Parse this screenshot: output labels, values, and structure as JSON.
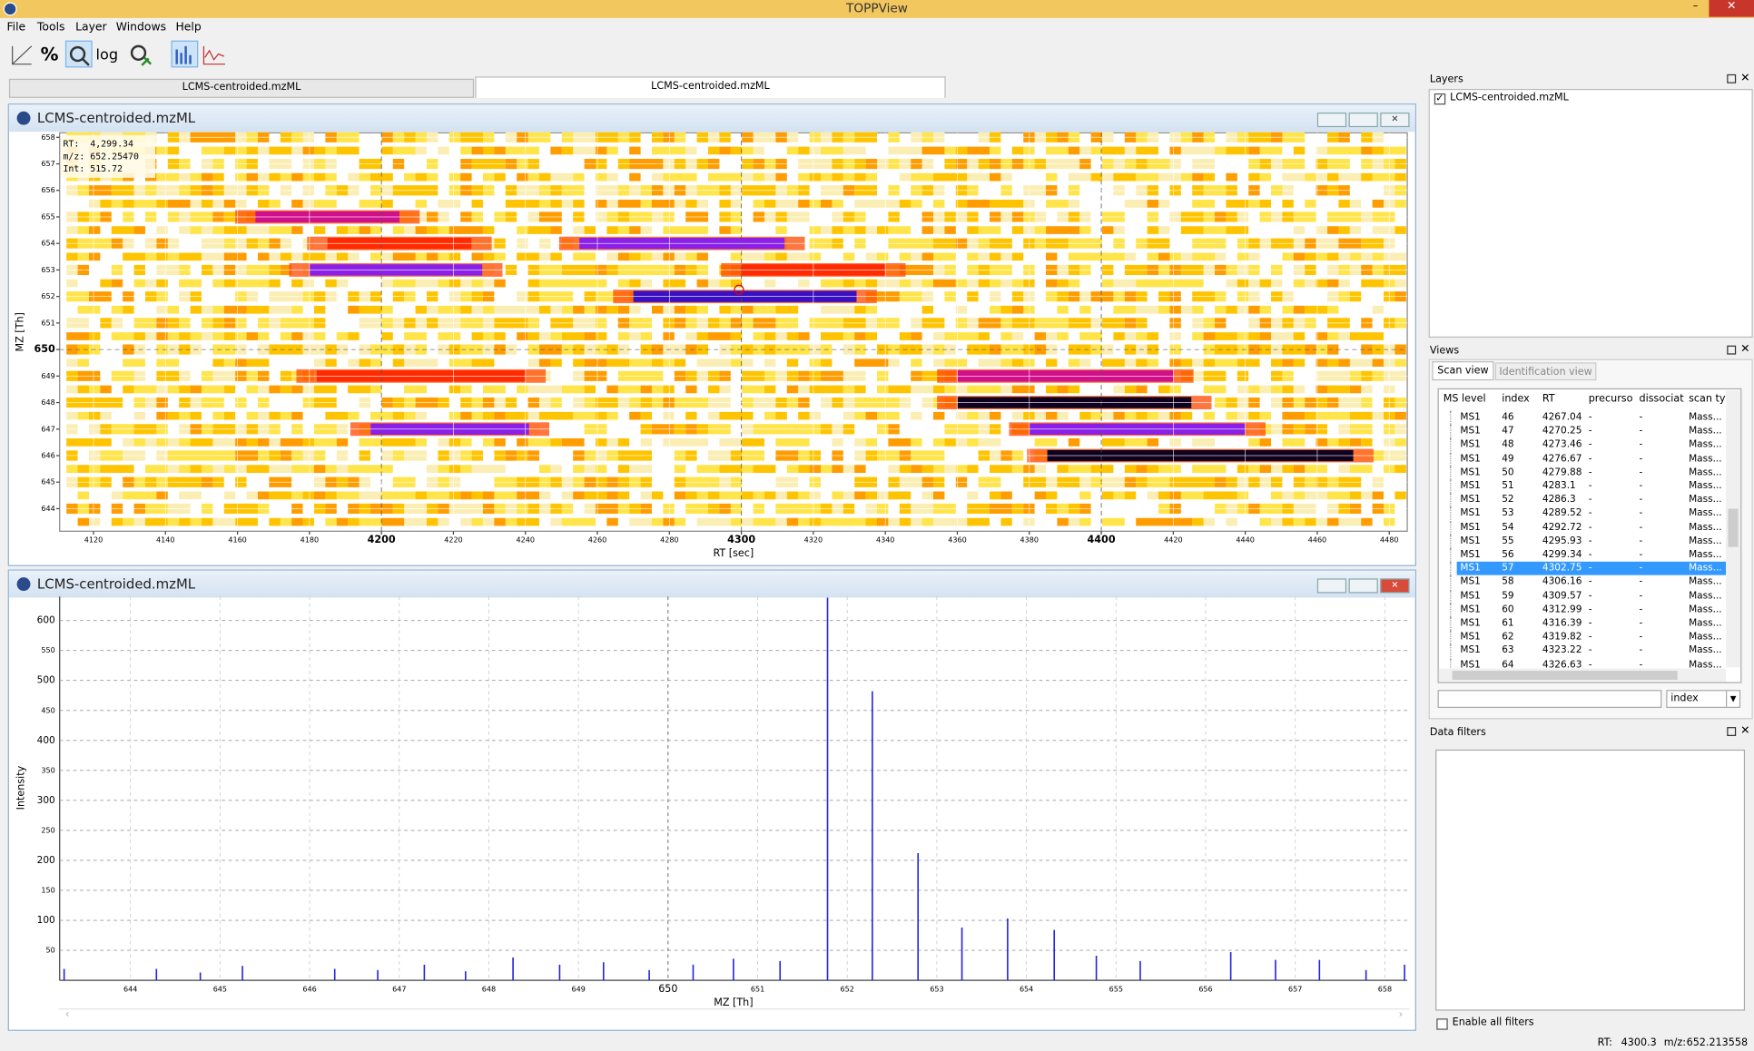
{
  "window": {
    "title": "TOPPView"
  },
  "menu": [
    "File",
    "Tools",
    "Layer",
    "Windows",
    "Help"
  ],
  "toolbar_texts": [
    "%",
    "log"
  ],
  "tabs": [
    "LCMS-centroided.mzML",
    "LCMS-centroided.mzML"
  ],
  "chart_data": [
    {
      "type": "heatmap",
      "title": "LCMS-centroided.mzML",
      "x_label": "RT [sec]",
      "y_label": "MZ [Th]",
      "xlim": [
        4110.6,
        4485
      ],
      "ylim": [
        643.15,
        658.17
      ],
      "xticks": [
        4120,
        4140,
        4160,
        4180,
        4200,
        4220,
        4240,
        4260,
        4280,
        4300,
        4320,
        4340,
        4360,
        4380,
        4400,
        4420,
        4440,
        4460,
        4480
      ],
      "yticks": [
        644,
        645,
        646,
        647,
        648,
        649,
        650,
        651,
        652,
        653,
        654,
        655,
        656,
        657,
        658
      ],
      "features": [
        {
          "mz": 655,
          "rt": [
            4165,
            4205
          ],
          "intensity": 300
        },
        {
          "mz": 654,
          "rt": [
            4185,
            4225
          ],
          "intensity": 200
        },
        {
          "mz": 654,
          "rt": [
            4255,
            4312
          ],
          "intensity": 400
        },
        {
          "mz": 653,
          "rt": [
            4180,
            4228
          ],
          "intensity": 450
        },
        {
          "mz": 653,
          "rt": [
            4300,
            4340
          ],
          "intensity": 200
        },
        {
          "mz": 652,
          "rt": [
            4270,
            4332
          ],
          "intensity": 600
        },
        {
          "mz": 649,
          "rt": [
            4182,
            4240
          ],
          "intensity": 200
        },
        {
          "mz": 649,
          "rt": [
            4360,
            4420
          ],
          "intensity": 350
        },
        {
          "mz": 648,
          "rt": [
            4360,
            4425
          ],
          "intensity": 700
        },
        {
          "mz": 647,
          "rt": [
            4197,
            4241
          ],
          "intensity": 400
        },
        {
          "mz": 647,
          "rt": [
            4380,
            4440
          ],
          "intensity": 400
        },
        {
          "mz": 646,
          "rt": [
            4385,
            4470
          ],
          "intensity": 750
        }
      ],
      "cursor": {
        "rt": 4299.34,
        "mz": 652.2547
      },
      "info_box": [
        "RT:  4,299.34",
        "m/z: 652.25470",
        "Int: 515.72"
      ]
    },
    {
      "type": "stick",
      "title": "LCMS-centroided.mzML",
      "x_label": "MZ [Th]",
      "y_label": "Intensity",
      "xlim": [
        643.21,
        658.25
      ],
      "ylim": [
        0,
        640
      ],
      "xticks": [
        644,
        645,
        646,
        647,
        648,
        649,
        650,
        651,
        652,
        653,
        654,
        655,
        656,
        657,
        658
      ],
      "yticks": [
        50,
        100,
        150,
        200,
        250,
        300,
        350,
        400,
        450,
        500,
        550,
        600
      ],
      "color": "#2424e0",
      "x": [
        643.26,
        644.29,
        644.78,
        645.25,
        646.28,
        646.76,
        647.28,
        647.74,
        648.27,
        648.79,
        649.28,
        649.79,
        650.28,
        650.73,
        651.25,
        651.78,
        652.28,
        652.79,
        653.28,
        653.79,
        654.31,
        654.78,
        655.27,
        656.28,
        656.78,
        657.27,
        657.79,
        658.22
      ],
      "values": [
        19,
        19,
        13,
        24,
        19,
        17,
        26,
        15,
        38,
        26,
        30,
        17,
        26,
        36,
        32,
        638,
        482,
        212,
        88,
        103,
        84,
        41,
        32,
        47,
        34,
        34,
        17,
        26
      ]
    }
  ],
  "layers": {
    "title": "Layers",
    "items": [
      "LCMS-centroided.mzML"
    ]
  },
  "views": {
    "title": "Views",
    "tabs": [
      "Scan view",
      "Identification view"
    ],
    "table": {
      "headers": [
        "MS level",
        "index",
        "RT",
        "precurso",
        "dissociat",
        "scan ty"
      ],
      "rows": [
        [
          "MS1",
          46,
          "4267.04",
          "-",
          "-",
          "Mass..."
        ],
        [
          "MS1",
          47,
          "4270.25",
          "-",
          "-",
          "Mass..."
        ],
        [
          "MS1",
          48,
          "4273.46",
          "-",
          "-",
          "Mass..."
        ],
        [
          "MS1",
          49,
          "4276.67",
          "-",
          "-",
          "Mass..."
        ],
        [
          "MS1",
          50,
          "4279.88",
          "-",
          "-",
          "Mass..."
        ],
        [
          "MS1",
          51,
          "4283.1",
          "-",
          "-",
          "Mass..."
        ],
        [
          "MS1",
          52,
          "4286.3",
          "-",
          "-",
          "Mass..."
        ],
        [
          "MS1",
          53,
          "4289.52",
          "-",
          "-",
          "Mass..."
        ],
        [
          "MS1",
          54,
          "4292.72",
          "-",
          "-",
          "Mass..."
        ],
        [
          "MS1",
          55,
          "4295.93",
          "-",
          "-",
          "Mass..."
        ],
        [
          "MS1",
          56,
          "4299.34",
          "-",
          "-",
          "Mass..."
        ],
        [
          "MS1",
          57,
          "4302.75",
          "-",
          "-",
          "Mass..."
        ],
        [
          "MS1",
          58,
          "4306.16",
          "-",
          "-",
          "Mass..."
        ],
        [
          "MS1",
          59,
          "4309.57",
          "-",
          "-",
          "Mass..."
        ],
        [
          "MS1",
          60,
          "4312.99",
          "-",
          "-",
          "Mass..."
        ],
        [
          "MS1",
          61,
          "4316.39",
          "-",
          "-",
          "Mass..."
        ],
        [
          "MS1",
          62,
          "4319.82",
          "-",
          "-",
          "Mass..."
        ],
        [
          "MS1",
          63,
          "4323.22",
          "-",
          "-",
          "Mass..."
        ],
        [
          "MS1",
          64,
          "4326.63",
          "-",
          "-",
          "Mass..."
        ]
      ],
      "selected_index": 57
    },
    "sort_field": "index"
  },
  "data_filters": {
    "title": "Data filters",
    "enable_label": "Enable all filters"
  },
  "status": {
    "rt_label": "RT:",
    "rt": 4300.3,
    "mz_label": "m/z:",
    "mz": 652.213558
  }
}
